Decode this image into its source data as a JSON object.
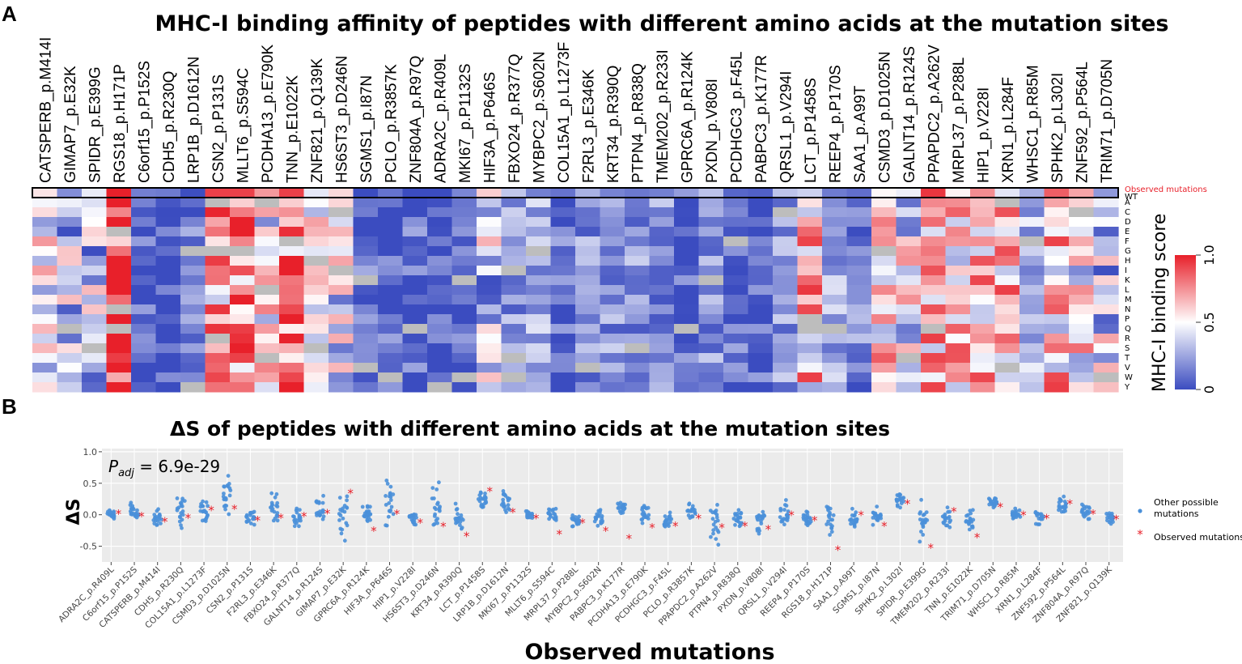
{
  "panel_a_letter": "A",
  "panel_b_letter": "B",
  "colors": {
    "low": "#3b4cc0",
    "mid": "#ffffff",
    "high": "#e8202a",
    "na": "#bdbdbd",
    "dots": "#4a90d9",
    "observed": "#e8202a",
    "panel_bg": "#ebebeb"
  },
  "chart_data": [
    {
      "type": "heatmap",
      "title": "MHC-I binding affinity of peptides with different amino acids at the mutation sites",
      "columns": [
        "CATSPERB_p.M414I",
        "GIMAP7_p.E32K",
        "SPIDR_p.E399G",
        "RGS18_p.H171P",
        "C6orf15_p.P152S",
        "CDH5_p.R230Q",
        "LRP1B_p.D1612N",
        "CSN2_p.P131S",
        "MLLT6_p.S594C",
        "PCDHA13_p.E790K",
        "TNN_p.E1022K",
        "ZNF821_p.Q139K",
        "HS6ST3_p.D246N",
        "SGMS1_p.I87N",
        "PCLO_p.R3857K",
        "ZNF804A_p.R97Q",
        "ADRA2C_p.R409L",
        "MKI67_p.P1132S",
        "HIF3A_p.P646S",
        "FBXO24_p.R377Q",
        "MYBPC2_p.S602N",
        "COL15A1_p.L1273F",
        "F2RL3_p.E346K",
        "KRT34_p.R390Q",
        "PTPN4_p.R838Q",
        "TMEM202_p.R233I",
        "GPRC6A_p.R124K",
        "PXDN_p.V808I",
        "PCDHGC3_p.F45L",
        "PABPC3_p.K177R",
        "QRSL1_p.V294I",
        "LCT_p.P1458S",
        "REEP4_p.P170S",
        "SAA1_p.A99T",
        "CSMD3_p.D1025N",
        "GALNT14_p.R124S",
        "PPAPDC2_p.A262V",
        "MRPL37_p.P288L",
        "HIP1_p.V228I",
        "XRN1_p.L284F",
        "WHSC1_p.R85M",
        "SPHK2_p.L302I",
        "ZNF592_p.P564L",
        "TRIM71_p.D705N"
      ],
      "rows": [
        "WT",
        "A",
        "C",
        "D",
        "E",
        "F",
        "G",
        "H",
        "I",
        "K",
        "L",
        "M",
        "N",
        "P",
        "Q",
        "R",
        "S",
        "T",
        "V",
        "W",
        "Y"
      ],
      "observed_label": "Observed mutations",
      "column_means": [
        0.45,
        0.32,
        0.35,
        0.9,
        0.08,
        0.07,
        0.12,
        0.66,
        0.78,
        0.5,
        0.76,
        0.55,
        0.38,
        0.1,
        0.08,
        0.09,
        0.03,
        0.06,
        0.35,
        0.22,
        0.28,
        0.12,
        0.2,
        0.2,
        0.2,
        0.19,
        0.08,
        0.2,
        0.1,
        0.08,
        0.22,
        0.6,
        0.25,
        0.16,
        0.6,
        0.45,
        0.62,
        0.55,
        0.58,
        0.62,
        0.3,
        0.6,
        0.48,
        0.35
      ],
      "legend": {
        "title": "MHC-I binding score",
        "ticks": [
          "0",
          "0.5",
          "1.0"
        ],
        "range": [
          0,
          1
        ]
      }
    },
    {
      "type": "scatter",
      "title": "ΔS of peptides with different amino acids at the mutation sites",
      "annotation_label": "P",
      "annotation_sub": "adj",
      "annotation_value": " = 6.9e-29",
      "ylabel": "ΔS",
      "xlabel": "Observed mutations",
      "ylim": [
        -0.75,
        1.05
      ],
      "yticks": [
        "1.0",
        "0.5",
        "0.0",
        "-0.5"
      ],
      "ytick_values": [
        1.0,
        0.5,
        0.0,
        -0.5
      ],
      "categories": [
        "ADRA2C_p.R409L",
        "C6orf15_p.P152S",
        "CATSPERB_p.M414I",
        "CDH5_p.R230Q",
        "COL15A1_p.L1273F",
        "CSMD3_p.D1025N",
        "CSN2_p.P131S",
        "F2RL3_p.E346K",
        "FBXO24_p.R377Q",
        "GALNT14_p.R124S",
        "GIMAP7_p.E32K",
        "GPRC6A_p.R124K",
        "HIF3A_p.P646S",
        "HIP1_p.V228I",
        "HS6ST3_p.D246N",
        "KRT34_p.R390Q",
        "LCT_p.P1458S",
        "LRP1B_p.D1612N",
        "MKI67_p.P1132S",
        "MLLT6_p.S594C",
        "MRPL37_p.P288L",
        "MYBPC2_p.S602N",
        "PABPC3_p.K177R",
        "PCDHA13_p.E790K",
        "PCDHGC3_p.F45L",
        "PCLO_p.R3857K",
        "PPAPDC2_p.A262V",
        "PTPN4_p.R838Q",
        "PXDN_p.V808I",
        "QRSL1_p.V294I",
        "REEP4_p.P170S",
        "RGS18_p.H171P",
        "SAA1_p.A99T",
        "SGMS1_p.I87N",
        "SPHK2_p.L302I",
        "SPIDR_p.E399G",
        "TMEM202_p.R233I",
        "TNN_p.E1022K",
        "TRIM71_p.D705N",
        "WHSC1_p.R85M",
        "XRN1_p.L284F",
        "ZNF592_p.P564L",
        "ZNF804A_p.R97Q",
        "ZNF821_p.Q139K"
      ],
      "observed_values": [
        0.02,
        -0.02,
        -0.1,
        -0.04,
        0.08,
        0.1,
        -0.08,
        -0.04,
        -0.02,
        0.03,
        0.35,
        -0.25,
        0.02,
        -0.12,
        -0.18,
        -0.33,
        0.38,
        0.05,
        -0.05,
        -0.3,
        -0.12,
        -0.25,
        -0.37,
        -0.2,
        -0.17,
        -0.05,
        -0.2,
        -0.17,
        -0.22,
        0.0,
        -0.08,
        -0.55,
        0.0,
        -0.17,
        0.18,
        -0.52,
        0.06,
        -0.35,
        0.13,
        0.0,
        -0.05,
        0.18,
        0.02,
        -0.06
      ],
      "spreads": [
        0.05,
        0.12,
        0.1,
        0.2,
        0.15,
        0.25,
        0.1,
        0.2,
        0.12,
        0.15,
        0.35,
        0.1,
        0.3,
        0.1,
        0.3,
        0.15,
        0.15,
        0.15,
        0.05,
        0.1,
        0.08,
        0.1,
        0.08,
        0.15,
        0.1,
        0.08,
        0.25,
        0.12,
        0.2,
        0.15,
        0.12,
        0.2,
        0.12,
        0.1,
        0.1,
        0.3,
        0.15,
        0.15,
        0.08,
        0.08,
        0.1,
        0.12,
        0.1,
        0.1
      ],
      "centers": [
        0.0,
        0.05,
        -0.05,
        0.05,
        0.05,
        0.3,
        -0.05,
        0.05,
        -0.05,
        0.05,
        -0.1,
        0.02,
        0.2,
        -0.05,
        0.05,
        -0.05,
        0.25,
        0.2,
        0.0,
        0.0,
        -0.1,
        -0.05,
        0.1,
        0.05,
        -0.1,
        0.05,
        -0.15,
        -0.05,
        -0.1,
        0.0,
        -0.05,
        -0.05,
        -0.05,
        -0.05,
        0.25,
        -0.1,
        -0.05,
        -0.1,
        0.2,
        0.0,
        -0.05,
        0.15,
        0.05,
        -0.05
      ],
      "legend": {
        "other": "Other possible mutations",
        "observed": "Observed mutations"
      }
    }
  ]
}
